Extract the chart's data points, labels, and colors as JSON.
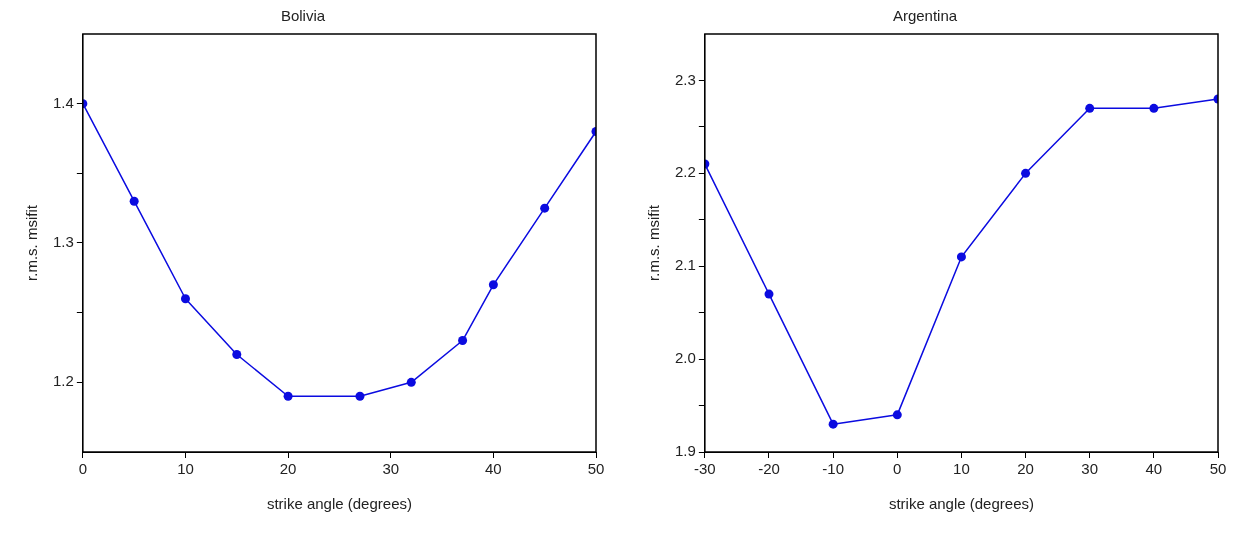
{
  "chart_data": [
    {
      "type": "line",
      "title": "Bolivia",
      "xlabel": "strike angle (degrees)",
      "ylabel": "r.m.s. msifit",
      "marker": "circle",
      "line_style": "solid",
      "x": [
        0,
        5,
        10,
        15,
        20,
        27,
        32,
        37,
        40,
        45,
        50
      ],
      "series": [
        {
          "color": "#0b0be0",
          "values": [
            1.4,
            1.33,
            1.26,
            1.22,
            1.19,
            1.19,
            1.2,
            1.23,
            1.27,
            1.325,
            1.38
          ]
        }
      ],
      "xlim": [
        0,
        50
      ],
      "xticks": [
        0,
        10,
        20,
        30,
        40,
        50
      ],
      "ylim": [
        1.15,
        1.45
      ],
      "yticks": [
        1.2,
        {
          "value": 1.25,
          "label": null
        },
        1.3,
        {
          "value": 1.35,
          "label": null
        },
        1.4
      ]
    },
    {
      "type": "line",
      "title": "Argentina",
      "xlabel": "strike angle (degrees)",
      "ylabel": "r.m.s. msifit",
      "marker": "circle",
      "line_style": "solid",
      "x": [
        -30,
        -20,
        -10,
        0,
        10,
        20,
        30,
        40,
        50
      ],
      "series": [
        {
          "color": "#0b0be0",
          "values": [
            2.21,
            2.07,
            1.93,
            1.94,
            2.11,
            2.2,
            2.27,
            2.27,
            2.28
          ]
        }
      ],
      "xlim": [
        -30,
        50
      ],
      "xticks": [
        -30,
        -20,
        -10,
        0,
        10,
        20,
        30,
        40,
        50
      ],
      "ylim": [
        1.9,
        2.35
      ],
      "yticks": [
        1.9,
        {
          "value": 1.95,
          "label": null
        },
        {
          "value": 2.0,
          "label": "2.0"
        },
        {
          "value": 2.05,
          "label": null
        },
        2.1,
        {
          "value": 2.15,
          "label": null
        },
        2.2,
        {
          "value": 2.25,
          "label": null
        },
        2.3
      ]
    }
  ]
}
